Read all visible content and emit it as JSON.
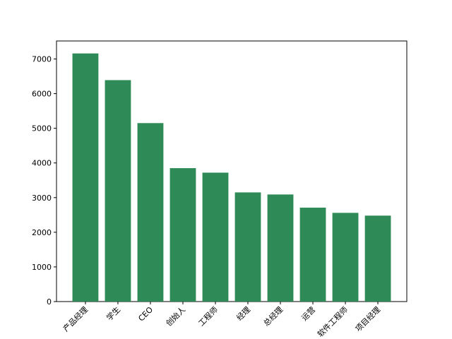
{
  "chart_data": {
    "type": "bar",
    "categories": [
      "产品经理",
      "学生",
      "CEO",
      "创始人",
      "工程师",
      "经理",
      "总经理",
      "运营",
      "软件工程师",
      "项目经理"
    ],
    "values": [
      7160,
      6390,
      5150,
      3850,
      3720,
      3150,
      3090,
      2710,
      2560,
      2480
    ],
    "color": "#2e8b57",
    "ylim": [
      0,
      7520
    ],
    "yticks": [
      0,
      1000,
      2000,
      3000,
      4000,
      5000,
      6000,
      7000
    ]
  }
}
